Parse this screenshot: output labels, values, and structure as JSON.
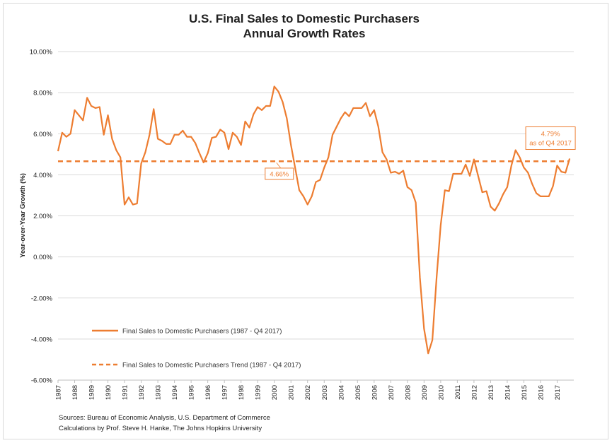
{
  "chart_data": {
    "type": "line",
    "title": "U.S. Final Sales to Domestic Purchasers",
    "subtitle": "Annual Growth Rates",
    "ylabel": "Year-over-Year Growth (%)",
    "xlabel": "",
    "ylim": [
      -6,
      10
    ],
    "xlim": [
      1987,
      2018
    ],
    "y_ticks": [
      {
        "value": 10,
        "label": "10.00%"
      },
      {
        "value": 8,
        "label": "8.00%"
      },
      {
        "value": 6,
        "label": "6.00%"
      },
      {
        "value": 4,
        "label": "4.00%"
      },
      {
        "value": 2,
        "label": "2.00%"
      },
      {
        "value": 0,
        "label": "0.00%"
      },
      {
        "value": -2,
        "label": "-2.00%"
      },
      {
        "value": -4,
        "label": "-4.00%"
      },
      {
        "value": -6,
        "label": "-6.00%"
      }
    ],
    "x_ticks": [
      "1987",
      "1988",
      "1989",
      "1990",
      "1991",
      "1992",
      "1993",
      "1994",
      "1995",
      "1996",
      "1997",
      "1998",
      "1999",
      "2000",
      "2001",
      "2002",
      "2003",
      "2004",
      "2005",
      "2006",
      "2007",
      "2008",
      "2009",
      "2010",
      "2011",
      "2012",
      "2013",
      "2014",
      "2015",
      "2016",
      "2017"
    ],
    "grid": "horizontal",
    "legend_position": "bottom-left",
    "series": [
      {
        "name": "Final Sales to Domestic Purchasers (1987 - Q4 2017)",
        "style": "solid",
        "color": "#ed7d31",
        "x": [
          1987.0,
          1987.25,
          1987.5,
          1987.75,
          1988.0,
          1988.25,
          1988.5,
          1988.75,
          1989.0,
          1989.25,
          1989.5,
          1989.75,
          1990.0,
          1990.25,
          1990.5,
          1990.75,
          1991.0,
          1991.25,
          1991.5,
          1991.75,
          1992.0,
          1992.25,
          1992.5,
          1992.75,
          1993.0,
          1993.25,
          1993.5,
          1993.75,
          1994.0,
          1994.25,
          1994.5,
          1994.75,
          1995.0,
          1995.25,
          1995.5,
          1995.75,
          1996.0,
          1996.25,
          1996.5,
          1996.75,
          1997.0,
          1997.25,
          1997.5,
          1997.75,
          1998.0,
          1998.25,
          1998.5,
          1998.75,
          1999.0,
          1999.25,
          1999.5,
          1999.75,
          2000.0,
          2000.25,
          2000.5,
          2000.75,
          2001.0,
          2001.25,
          2001.5,
          2001.75,
          2002.0,
          2002.25,
          2002.5,
          2002.75,
          2003.0,
          2003.25,
          2003.5,
          2003.75,
          2004.0,
          2004.25,
          2004.5,
          2004.75,
          2005.0,
          2005.25,
          2005.5,
          2005.75,
          2006.0,
          2006.25,
          2006.5,
          2006.75,
          2007.0,
          2007.25,
          2007.5,
          2007.75,
          2008.0,
          2008.25,
          2008.5,
          2008.75,
          2009.0,
          2009.25,
          2009.5,
          2009.75,
          2010.0,
          2010.25,
          2010.5,
          2010.75,
          2011.0,
          2011.25,
          2011.5,
          2011.75,
          2012.0,
          2012.25,
          2012.5,
          2012.75,
          2013.0,
          2013.25,
          2013.5,
          2013.75,
          2014.0,
          2014.25,
          2014.5,
          2014.75,
          2015.0,
          2015.25,
          2015.5,
          2015.75,
          2016.0,
          2016.25,
          2016.5,
          2016.75,
          2017.0,
          2017.25,
          2017.5,
          2017.75
        ],
        "values": [
          5.15,
          6.05,
          5.85,
          6.0,
          7.15,
          6.9,
          6.65,
          7.75,
          7.35,
          7.25,
          7.3,
          5.95,
          6.9,
          5.75,
          5.2,
          4.85,
          2.55,
          2.9,
          2.55,
          2.6,
          4.55,
          5.1,
          5.95,
          7.2,
          5.75,
          5.65,
          5.5,
          5.5,
          5.95,
          5.95,
          6.15,
          5.85,
          5.85,
          5.55,
          5.05,
          4.6,
          5.05,
          5.8,
          5.85,
          6.2,
          6.05,
          5.25,
          6.05,
          5.85,
          5.45,
          6.6,
          6.3,
          6.95,
          7.3,
          7.15,
          7.35,
          7.35,
          8.3,
          8.05,
          7.55,
          6.75,
          5.45,
          4.35,
          3.25,
          2.95,
          2.55,
          2.95,
          3.65,
          3.75,
          4.35,
          4.85,
          5.95,
          6.35,
          6.75,
          7.05,
          6.85,
          7.25,
          7.25,
          7.25,
          7.5,
          6.85,
          7.15,
          6.35,
          5.1,
          4.75,
          4.1,
          4.15,
          4.05,
          4.2,
          3.4,
          3.25,
          2.65,
          -1.0,
          -3.5,
          -4.7,
          -4.05,
          -1.05,
          1.55,
          3.25,
          3.2,
          4.05,
          4.05,
          4.05,
          4.5,
          3.95,
          4.75,
          3.95,
          3.15,
          3.2,
          2.45,
          2.25,
          2.6,
          3.05,
          3.4,
          4.45,
          5.2,
          4.85,
          4.35,
          4.1,
          3.55,
          3.1,
          2.95,
          2.95,
          2.95,
          3.45,
          4.45,
          4.15,
          4.1,
          4.79
        ]
      },
      {
        "name": "Final Sales to Domestic Purchasers Trend (1987 - Q4 2017)",
        "style": "dashed",
        "color": "#ed7d31",
        "x": [
          1987.0,
          2017.75
        ],
        "values": [
          4.66,
          4.66
        ]
      }
    ],
    "annotations": [
      {
        "text": "4.66%",
        "x": 2000.3,
        "y": 4.05
      },
      {
        "text_line1": "4.79%",
        "text_line2": "as of Q4 2017",
        "x": 2016.6,
        "y": 5.75
      }
    ]
  },
  "sources": {
    "line1": "Sources: Bureau of Economic Analysis, U.S. Department of Commerce",
    "line2": "Calculations by Prof. Steve H. Hanke, The Johns Hopkins University"
  }
}
